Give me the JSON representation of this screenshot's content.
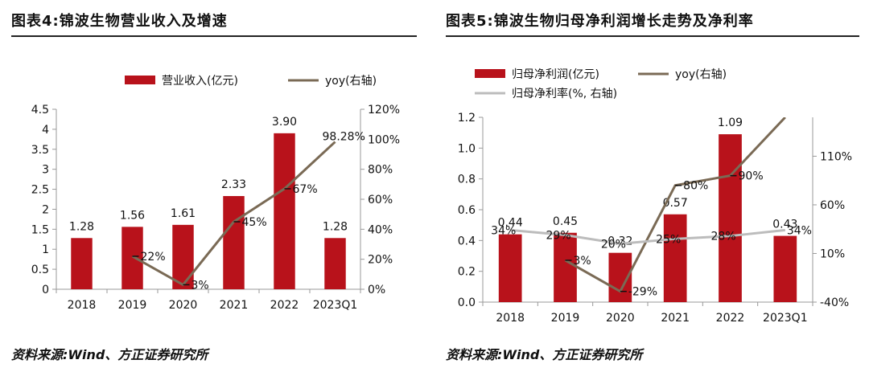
{
  "charts": [
    {
      "id": "c1",
      "title": "图表4:锦波生物营业收入及增速",
      "source": "资料来源:Wind、方正证券研究所",
      "legend": [
        "营业收入(亿元)",
        "yoy(右轴)"
      ],
      "colors": {
        "bar": "#b8121b",
        "line": "#7a6a55",
        "line2": "#bcbcbc"
      }
    },
    {
      "id": "c2",
      "title": "图表5:锦波生物归母净利润增长走势及净利率",
      "source": "资料来源:Wind、方正证券研究所",
      "legend": [
        "归母净利润(亿元)",
        "yoy(右轴)",
        "归母净利率(%, 右轴)"
      ],
      "colors": {
        "bar": "#b8121b",
        "line": "#7a6a55",
        "line2": "#bcbcbc"
      }
    }
  ],
  "chart_data": [
    {
      "type": "bar",
      "categories": [
        "2018",
        "2019",
        "2020",
        "2021",
        "2022",
        "2023Q1"
      ],
      "series": [
        {
          "name": "营业收入(亿元)",
          "type": "bar",
          "axis": "left",
          "values": [
            1.28,
            1.56,
            1.61,
            2.33,
            3.9,
            1.28
          ],
          "labels": [
            "1.28",
            "1.56",
            "1.61",
            "2.33",
            "3.90",
            "1.28"
          ]
        },
        {
          "name": "yoy(右轴)",
          "type": "line",
          "axis": "right",
          "values": [
            null,
            22,
            3,
            45,
            67,
            98.28
          ],
          "labels": [
            "",
            "22%",
            "3%",
            "45%",
            "67%",
            "98.28%"
          ]
        }
      ],
      "ylim": [
        0,
        4.5
      ],
      "yticks": [
        "0",
        "0.5",
        "1",
        "1.5",
        "2",
        "2.5",
        "3",
        "3.5",
        "4",
        "4.5"
      ],
      "y2lim": [
        0,
        120
      ],
      "y2ticks": [
        "0%",
        "20%",
        "40%",
        "60%",
        "80%",
        "100%",
        "120%"
      ],
      "legend_position": "top"
    },
    {
      "type": "bar",
      "categories": [
        "2018",
        "2019",
        "2020",
        "2021",
        "2022",
        "2023Q1"
      ],
      "series": [
        {
          "name": "归母净利润(亿元)",
          "type": "bar",
          "axis": "left",
          "values": [
            0.44,
            0.45,
            0.32,
            0.57,
            1.09,
            0.43
          ],
          "labels": [
            "0.44",
            "0.45",
            "0.32",
            "0.57",
            "1.09",
            "0.43"
          ]
        },
        {
          "name": "yoy(右轴)",
          "type": "line",
          "axis": "right",
          "values": [
            null,
            3,
            -29,
            80,
            90,
            150
          ],
          "labels": [
            "",
            "3%",
            "-29%",
            "80%",
            "90%",
            ""
          ]
        },
        {
          "name": "归母净利率(%, 右轴)",
          "type": "line",
          "axis": "right",
          "values": [
            34,
            29,
            20,
            25,
            28,
            34
          ],
          "labels": [
            "34%",
            "29%",
            "20%",
            "25%",
            "28%",
            "34%"
          ]
        }
      ],
      "ylim": [
        0,
        1.2
      ],
      "yticks": [
        "0.0",
        "0.2",
        "0.4",
        "0.6",
        "0.8",
        "1.0",
        "1.2"
      ],
      "y2lim": [
        -40,
        150
      ],
      "y2ticks": [
        "-40%",
        "10%",
        "60%",
        "110%"
      ],
      "legend_position": "top"
    }
  ]
}
